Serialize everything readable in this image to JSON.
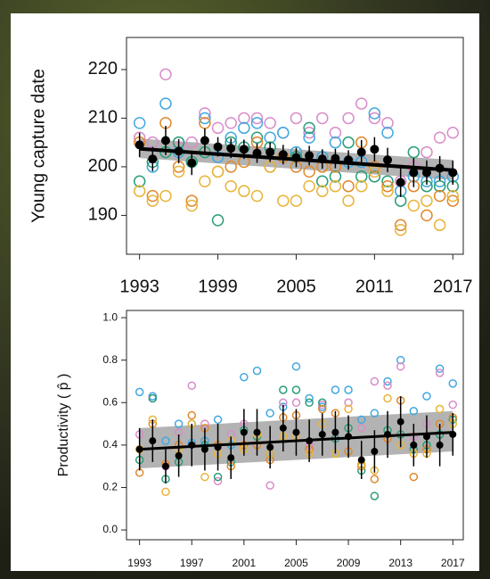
{
  "chart_data": [
    {
      "type": "scatter",
      "ylabel": "Young capture date",
      "x": [
        1993,
        1994,
        1995,
        1996,
        1997,
        1998,
        1999,
        2000,
        2001,
        2002,
        2003,
        2004,
        2005,
        2006,
        2007,
        2008,
        2009,
        2010,
        2011,
        2012,
        2013,
        2014,
        2015,
        2016,
        2017
      ],
      "xlim": [
        1992,
        2017.8
      ],
      "xticks": [
        1993,
        1999,
        2005,
        2011,
        2017
      ],
      "ylim": [
        182,
        226.6
      ],
      "yticks": [
        190,
        200,
        210,
        220
      ],
      "series": [
        {
          "color": "#d98cc8",
          "values": [
            206,
            205,
            219,
            204,
            205,
            211,
            208,
            209,
            210,
            210,
            209,
            207,
            210,
            207,
            210,
            207,
            210,
            213,
            210,
            209,
            197,
            200,
            203,
            206,
            207
          ]
        },
        {
          "color": "#40a8e0",
          "values": [
            209,
            200,
            213,
            203,
            201,
            210,
            202,
            206,
            208,
            209,
            206,
            207,
            203,
            206,
            202,
            205,
            201,
            201,
            211,
            207,
            195,
            198,
            197,
            197,
            198
          ]
        },
        {
          "color": "#2a9d7a",
          "values": [
            197,
            201,
            203,
            205,
            201,
            203,
            189,
            205,
            204,
            206,
            204,
            202,
            202,
            208,
            197,
            198,
            205,
            198,
            198,
            197,
            193,
            203,
            196,
            196,
            196
          ]
        },
        {
          "color": "#e0882c",
          "values": [
            205,
            194,
            209,
            200,
            193,
            209,
            199,
            200,
            201,
            205,
            200,
            202,
            200,
            199,
            200,
            200,
            196,
            205,
            200,
            196,
            188,
            196,
            190,
            194,
            193
          ]
        },
        {
          "color": "#e8b43a",
          "values": [
            195,
            193,
            194,
            199,
            192,
            197,
            199,
            196,
            195,
            194,
            200,
            193,
            193,
            196,
            195,
            196,
            193,
            196,
            199,
            195,
            187,
            192,
            193,
            188,
            194
          ]
        }
      ],
      "means": {
        "color": "#000000",
        "values": [
          204.5,
          201.6,
          205.4,
          203.2,
          200.8,
          205.4,
          204.1,
          203.8,
          203.6,
          202.8,
          203.0,
          202.5,
          201.9,
          202.3,
          201.6,
          201.7,
          201.4,
          203.0,
          203.6,
          201.4,
          196.8,
          198.8,
          198.8,
          199.7,
          198.8
        ],
        "errors": [
          2.5,
          2.5,
          3,
          2.5,
          2.5,
          2.5,
          2,
          2,
          2,
          2,
          2,
          2,
          2,
          2,
          2,
          2,
          2,
          2.5,
          2.5,
          2.5,
          3,
          3,
          2.5,
          2.5,
          2.5
        ]
      },
      "trend": {
        "x": [
          1993,
          2017
        ],
        "values": [
          203.7,
          199.3
        ],
        "lower": [
          201.8,
          197.3
        ],
        "upper": [
          205.8,
          201.4
        ],
        "color": "#000000",
        "band_color": "#b3b3b3"
      }
    },
    {
      "type": "scatter",
      "ylabel": "Productivity ( p̂ )",
      "x": [
        1993,
        1994,
        1995,
        1996,
        1997,
        1998,
        1999,
        2000,
        2001,
        2002,
        2003,
        2004,
        2005,
        2006,
        2007,
        2008,
        2009,
        2010,
        2011,
        2012,
        2013,
        2014,
        2015,
        2016,
        2017
      ],
      "xlim": [
        1992,
        2017.8
      ],
      "xticks": [
        1993,
        1997,
        2001,
        2005,
        2009,
        2013,
        2017
      ],
      "ylim": [
        -0.046,
        1.034
      ],
      "yticks": [
        {
          "value": 0,
          "label": "0.0"
        },
        0.2,
        0.4,
        0.6,
        0.8,
        {
          "value": 1,
          "label": "1.0"
        }
      ],
      "series": [
        {
          "color": "#40a8e0",
          "values": [
            0.65,
            0.63,
            0.42,
            0.5,
            0.41,
            0.42,
            0.52,
            0.4,
            0.72,
            0.75,
            0.55,
            0.58,
            0.77,
            0.62,
            0.58,
            0.66,
            0.66,
            0.52,
            0.55,
            0.7,
            0.8,
            0.56,
            0.63,
            0.76,
            0.69
          ]
        },
        {
          "color": "#d98cc8",
          "values": [
            0.45,
            0.62,
            0.3,
            0.46,
            0.68,
            0.5,
            0.23,
            0.45,
            0.5,
            0.4,
            0.21,
            0.6,
            0.6,
            0.4,
            0.59,
            0.44,
            0.6,
            0.48,
            0.7,
            0.68,
            0.77,
            0.44,
            0.5,
            0.74,
            0.59
          ]
        },
        {
          "color": "#2a9d7a",
          "values": [
            0.33,
            0.62,
            0.24,
            0.32,
            0.5,
            0.4,
            0.25,
            0.32,
            0.47,
            0.44,
            0.36,
            0.66,
            0.66,
            0.6,
            0.6,
            0.43,
            0.48,
            0.28,
            0.16,
            0.47,
            0.45,
            0.38,
            0.4,
            0.45,
            0.52
          ]
        },
        {
          "color": "#e0882c",
          "values": [
            0.27,
            0.5,
            0.31,
            0.4,
            0.54,
            0.48,
            0.4,
            0.3,
            0.4,
            0.4,
            0.33,
            0.53,
            0.54,
            0.38,
            0.57,
            0.55,
            0.37,
            0.3,
            0.24,
            0.43,
            0.61,
            0.25,
            0.38,
            0.5,
            0.53
          ]
        },
        {
          "color": "#e8b43a",
          "values": [
            0.38,
            0.52,
            0.18,
            0.38,
            0.5,
            0.25,
            0.36,
            0.42,
            0.38,
            0.45,
            0.36,
            0.44,
            0.44,
            0.36,
            0.5,
            0.36,
            0.57,
            0.31,
            0.28,
            0.62,
            0.4,
            0.36,
            0.36,
            0.57,
            0.5
          ]
        }
      ],
      "means": {
        "color": "#000000",
        "values": [
          0.38,
          0.42,
          0.3,
          0.35,
          0.4,
          0.38,
          0.39,
          0.34,
          0.46,
          0.46,
          0.39,
          0.48,
          0.46,
          0.42,
          0.45,
          0.46,
          0.44,
          0.33,
          0.37,
          0.45,
          0.51,
          0.4,
          0.44,
          0.4,
          0.45
        ],
        "errors": [
          0.1,
          0.1,
          0.08,
          0.1,
          0.1,
          0.1,
          0.11,
          0.1,
          0.11,
          0.11,
          0.1,
          0.11,
          0.11,
          0.1,
          0.1,
          0.1,
          0.1,
          0.09,
          0.1,
          0.11,
          0.12,
          0.1,
          0.1,
          0.1,
          0.1
        ]
      },
      "trend": {
        "x": [
          1993,
          2017
        ],
        "values": [
          0.38,
          0.46
        ],
        "lower": [
          0.29,
          0.37
        ],
        "upper": [
          0.48,
          0.56
        ],
        "color": "#000000",
        "band_color": "#b3b3b3"
      }
    }
  ]
}
